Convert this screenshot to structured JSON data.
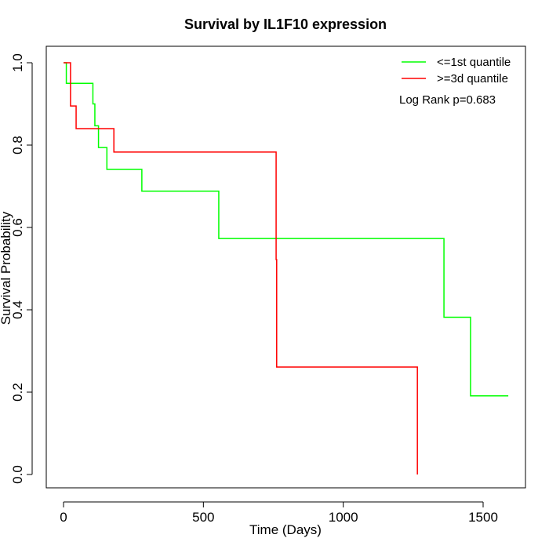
{
  "chart_data": {
    "type": "line",
    "title": "Survival by IL1F10 expression",
    "xlabel": "Time (Days)",
    "ylabel": "Survival Probability",
    "xlim": [
      0,
      1650
    ],
    "ylim": [
      0,
      1.0
    ],
    "xticks": [
      0,
      500,
      1000,
      1500
    ],
    "yticks": [
      0.0,
      0.2,
      0.4,
      0.6,
      0.8,
      1.0
    ],
    "xtick_labels": [
      "0",
      "500",
      "1000",
      "1500"
    ],
    "ytick_labels": [
      "0.0",
      "0.2",
      "0.4",
      "0.6",
      "0.8",
      "1.0"
    ],
    "grid": false,
    "legend_position": "top-right",
    "annotation": "Log Rank p=0.683",
    "series": [
      {
        "name": "<=1st quantile",
        "color": "#00ff00",
        "step": true,
        "x": [
          0,
          10,
          105,
          112,
          125,
          155,
          280,
          555,
          1360,
          1455,
          1590
        ],
        "y": [
          1.0,
          0.95,
          0.9,
          0.847,
          0.794,
          0.741,
          0.688,
          0.573,
          0.382,
          0.191,
          0.191
        ]
      },
      {
        "name": ">=3d quantile",
        "color": "#ff0000",
        "step": true,
        "x": [
          0,
          25,
          45,
          180,
          760,
          762,
          1265,
          1265
        ],
        "y": [
          1.0,
          0.895,
          0.84,
          0.783,
          0.522,
          0.261,
          0.261,
          0.0
        ]
      }
    ]
  }
}
